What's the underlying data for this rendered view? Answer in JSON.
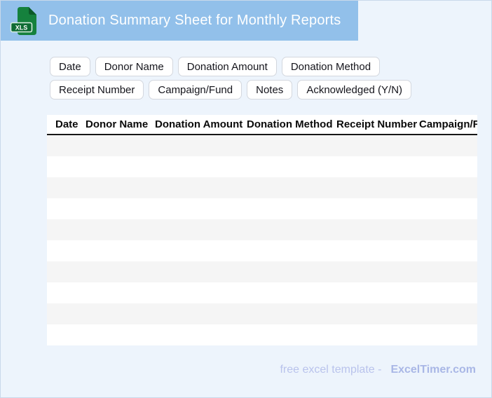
{
  "header": {
    "title": "Donation Summary Sheet for Monthly Reports",
    "file_badge": "XLS"
  },
  "chips": {
    "items": [
      {
        "label": "Date"
      },
      {
        "label": "Donor Name"
      },
      {
        "label": "Donation Amount"
      },
      {
        "label": "Donation Method"
      },
      {
        "label": "Receipt Number"
      },
      {
        "label": "Campaign/Fund"
      },
      {
        "label": "Notes"
      },
      {
        "label": "Acknowledged (Y/N)"
      }
    ]
  },
  "table": {
    "columns": [
      {
        "label": "Date"
      },
      {
        "label": "Donor Name"
      },
      {
        "label": "Donation Amount"
      },
      {
        "label": "Donation Method"
      },
      {
        "label": "Receipt Number"
      },
      {
        "label": "Campaign/Fund"
      }
    ],
    "row_count": 10,
    "rows": []
  },
  "footer": {
    "credit_text": "free excel template -",
    "brand": "ExcelTimer.com"
  },
  "colors": {
    "titlebar_bg": "#92c0ea",
    "page_bg": "#edf4fc",
    "icon_green": "#15813d",
    "icon_green_dark": "#0b5a29",
    "stripe_gray": "#f5f5f5",
    "header_rule": "#161616",
    "footer_text": "#b9c3ec",
    "footer_brand": "#a9b7e6"
  }
}
